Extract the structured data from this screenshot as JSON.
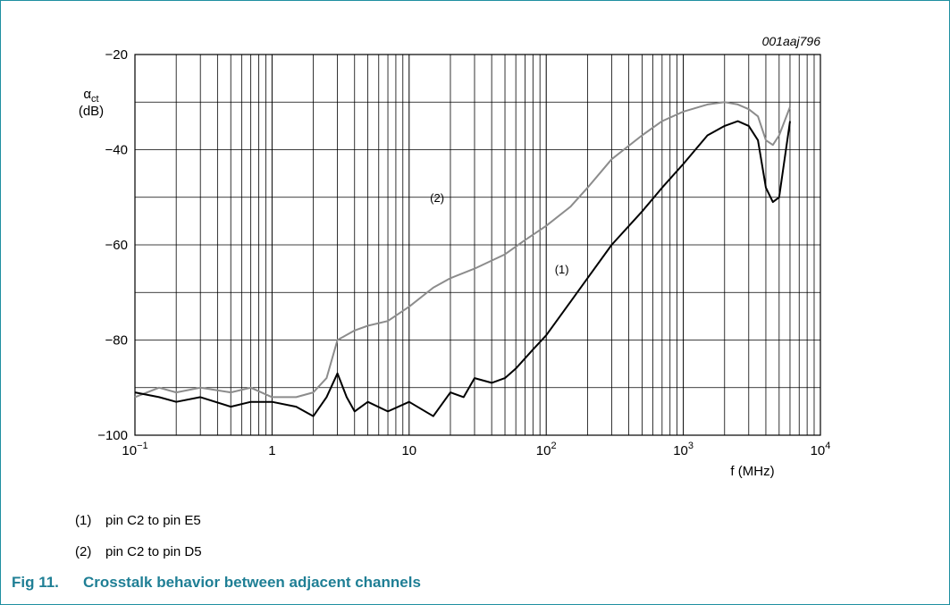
{
  "figure": {
    "code": "001aaj796",
    "caption_number": "Fig 11.",
    "caption_text": "Crosstalk behavior between adjacent channels",
    "notes": [
      {
        "num": "(1)",
        "text": "pin C2 to pin E5"
      },
      {
        "num": "(2)",
        "text": "pin C2 to pin D5"
      }
    ]
  },
  "colors": {
    "frame": "#1f8fa0",
    "caption": "#1f7f95",
    "series_1": "#000000",
    "series_2": "#8c8c8c",
    "grid": "#000000"
  },
  "chart_data": {
    "type": "line",
    "title": "",
    "ylabel_symbol": "α",
    "ylabel_subscript": "ct",
    "ylabel_unit": "(dB)",
    "xlabel": "f (MHz)",
    "x_scale": "log",
    "xlim": [
      0.1,
      10000
    ],
    "ylim": [
      -100,
      -20
    ],
    "grid": true,
    "x_ticks": [
      {
        "value": 0.1,
        "base": "10",
        "exp": "−1"
      },
      {
        "value": 1,
        "base": "1",
        "exp": ""
      },
      {
        "value": 10,
        "base": "10",
        "exp": ""
      },
      {
        "value": 100,
        "base": "10",
        "exp": "2"
      },
      {
        "value": 1000,
        "base": "10",
        "exp": "3"
      },
      {
        "value": 10000,
        "base": "10",
        "exp": "4"
      }
    ],
    "y_ticks": [
      {
        "value": -20,
        "label": "−20"
      },
      {
        "value": -40,
        "label": "−40"
      },
      {
        "value": -60,
        "label": "−60"
      },
      {
        "value": -80,
        "label": "−80"
      },
      {
        "value": -100,
        "label": "−100"
      }
    ],
    "series": [
      {
        "name": "(1)",
        "label_at": [
          130,
          -66
        ],
        "x": [
          0.1,
          0.15,
          0.2,
          0.3,
          0.5,
          0.7,
          1,
          1.5,
          2,
          2.5,
          3,
          3.5,
          4,
          5,
          7,
          10,
          15,
          20,
          25,
          30,
          40,
          50,
          60,
          80,
          100,
          150,
          200,
          300,
          500,
          700,
          1000,
          1500,
          2000,
          2500,
          3000,
          3500,
          4000,
          4500,
          5000,
          6000
        ],
        "y": [
          -91,
          -92,
          -93,
          -92,
          -94,
          -93,
          -93,
          -94,
          -96,
          -92,
          -87,
          -92,
          -95,
          -93,
          -95,
          -93,
          -96,
          -91,
          -92,
          -88,
          -89,
          -88,
          -86,
          -82,
          -79,
          -72,
          -67,
          -60,
          -53,
          -48,
          -43,
          -37,
          -35,
          -34,
          -35,
          -38,
          -48,
          -51,
          -50,
          -34
        ]
      },
      {
        "name": "(2)",
        "label_at": [
          16,
          -51
        ],
        "x": [
          0.1,
          0.15,
          0.2,
          0.3,
          0.5,
          0.7,
          1,
          1.5,
          2,
          2.5,
          3,
          4,
          5,
          7,
          10,
          15,
          20,
          30,
          50,
          70,
          100,
          150,
          200,
          300,
          500,
          700,
          1000,
          1500,
          2000,
          2500,
          3000,
          3500,
          4000,
          4500,
          5000,
          6000
        ],
        "y": [
          -92,
          -90,
          -91,
          -90,
          -91,
          -90,
          -92,
          -92,
          -91,
          -88,
          -80,
          -78,
          -77,
          -76,
          -73,
          -69,
          -67,
          -65,
          -62,
          -59,
          -56,
          -52,
          -48,
          -42,
          -37,
          -34,
          -32,
          -30.5,
          -30,
          -30.5,
          -31.5,
          -33,
          -38,
          -39,
          -37,
          -31
        ]
      }
    ]
  }
}
